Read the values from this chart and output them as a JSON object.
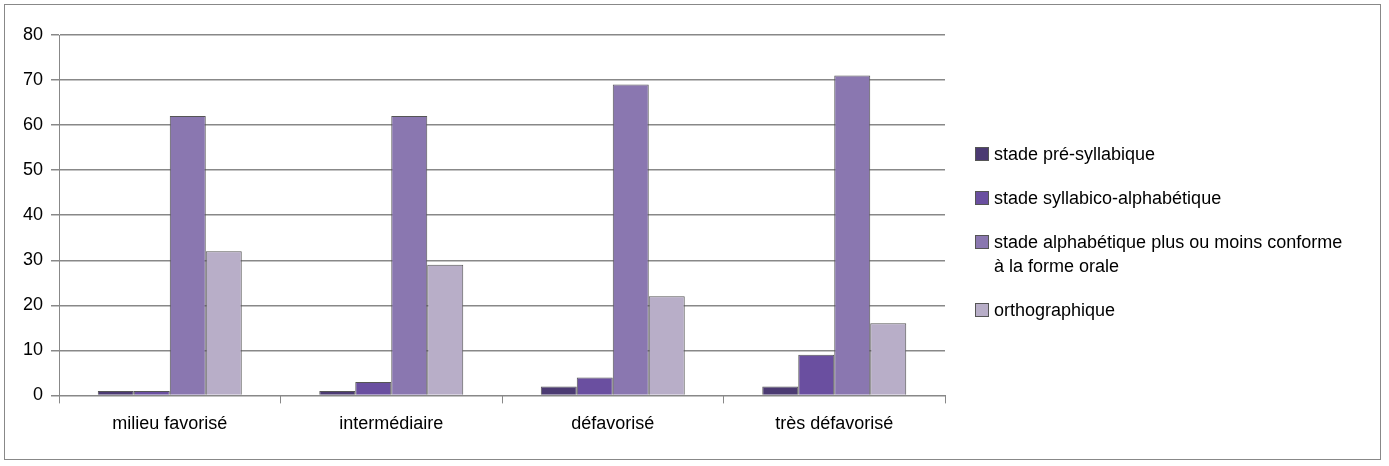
{
  "chart_data": {
    "type": "bar",
    "categories": [
      "milieu favorisé",
      "intermédiaire",
      "défavorisé",
      "très défavorisé"
    ],
    "series": [
      {
        "name": "stade pré-syllabique",
        "color": "#4b3a72",
        "values": [
          1,
          1,
          2,
          2
        ]
      },
      {
        "name": "stade syllabico-alphabétique",
        "color": "#6a4fa0",
        "values": [
          1,
          3,
          4,
          9
        ]
      },
      {
        "name": "stade alphabétique plus ou moins conforme à la forme orale",
        "color": "#8a77b0",
        "values": [
          62,
          62,
          69,
          71
        ]
      },
      {
        "name": "orthographique",
        "color": "#b8aec8",
        "values": [
          32,
          29,
          22,
          16
        ]
      }
    ],
    "ylim": [
      0,
      80
    ],
    "yticks": [
      0,
      10,
      20,
      30,
      40,
      50,
      60,
      70,
      80
    ],
    "grid": "y",
    "legend": "right"
  }
}
